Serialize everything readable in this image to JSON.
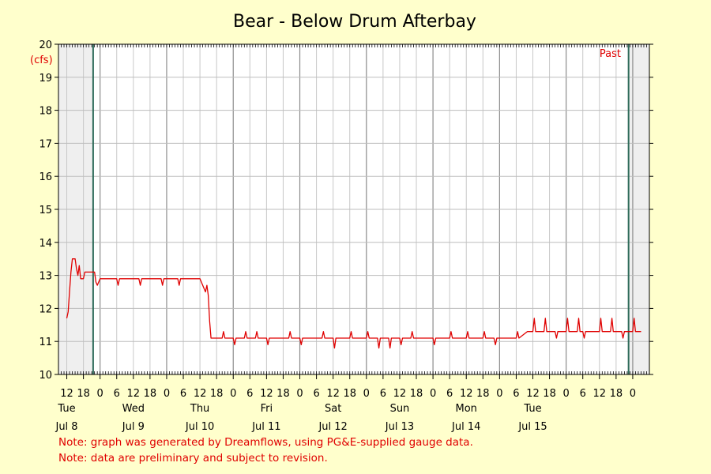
{
  "chart_data": {
    "type": "line",
    "title": "Bear - Below Drum Afterbay",
    "ylabel": "(cfs)",
    "ylim": [
      10,
      20
    ],
    "yticks": [
      "10",
      "11",
      "12",
      "13",
      "14",
      "15",
      "16",
      "17",
      "18",
      "19",
      "20"
    ],
    "grid": true,
    "x_range_hours": [
      -12,
      180
    ],
    "x_hour_ticks": [
      "12",
      "18",
      "0",
      "6",
      "12",
      "18",
      "0",
      "6",
      "12",
      "18",
      "0",
      "6",
      "12",
      "18",
      "0",
      "6",
      "12",
      "18",
      "0",
      "6",
      "12",
      "18",
      "0",
      "6",
      "12",
      "18",
      "0",
      "6",
      "12",
      "18",
      "0",
      "6",
      "12",
      "18",
      "0"
    ],
    "day_labels": [
      {
        "day": "Tue",
        "date": "Jul 8"
      },
      {
        "day": "Wed",
        "date": "Jul 9"
      },
      {
        "day": "Thu",
        "date": "Jul 10"
      },
      {
        "day": "Fri",
        "date": "Jul 11"
      },
      {
        "day": "Sat",
        "date": "Jul 12"
      },
      {
        "day": "Sun",
        "date": "Jul 13"
      },
      {
        "day": "Mon",
        "date": "Jul 14"
      },
      {
        "day": "Tue",
        "date": "Jul 15"
      }
    ],
    "marker_label": "Past",
    "series": [
      {
        "color": "#e00000",
        "points": [
          [
            -12,
            11.7
          ],
          [
            -11.5,
            11.9
          ],
          [
            -11,
            12.5
          ],
          [
            -10.5,
            13.1
          ],
          [
            -10,
            13.5
          ],
          [
            -9,
            13.5
          ],
          [
            -8.5,
            13.2
          ],
          [
            -8,
            13.0
          ],
          [
            -7.5,
            13.3
          ],
          [
            -7,
            12.9
          ],
          [
            -6,
            12.9
          ],
          [
            -5.5,
            13.1
          ],
          [
            -2,
            13.1
          ],
          [
            -1.5,
            12.8
          ],
          [
            -1,
            12.7
          ],
          [
            0,
            12.9
          ],
          [
            6,
            12.9
          ],
          [
            6.5,
            12.7
          ],
          [
            7,
            12.9
          ],
          [
            14,
            12.9
          ],
          [
            14.5,
            12.7
          ],
          [
            15,
            12.9
          ],
          [
            22,
            12.9
          ],
          [
            22.5,
            12.7
          ],
          [
            23,
            12.9
          ],
          [
            26,
            12.9
          ],
          [
            28,
            12.9
          ],
          [
            28.5,
            12.7
          ],
          [
            29,
            12.9
          ],
          [
            36,
            12.9
          ],
          [
            37,
            12.7
          ],
          [
            38,
            12.5
          ],
          [
            38.5,
            12.7
          ],
          [
            39,
            12.4
          ],
          [
            39.5,
            11.6
          ],
          [
            40,
            11.1
          ],
          [
            44,
            11.1
          ],
          [
            44.5,
            11.3
          ],
          [
            45,
            11.1
          ],
          [
            48,
            11.1
          ],
          [
            48.5,
            10.9
          ],
          [
            49,
            11.1
          ],
          [
            52,
            11.1
          ],
          [
            52.5,
            11.3
          ],
          [
            53,
            11.1
          ],
          [
            56,
            11.1
          ],
          [
            56.5,
            11.3
          ],
          [
            57,
            11.1
          ],
          [
            60,
            11.1
          ],
          [
            60.5,
            10.9
          ],
          [
            61,
            11.1
          ],
          [
            68,
            11.1
          ],
          [
            68.5,
            11.3
          ],
          [
            69,
            11.1
          ],
          [
            72,
            11.1
          ],
          [
            72.5,
            10.9
          ],
          [
            73,
            11.1
          ],
          [
            80,
            11.1
          ],
          [
            80.5,
            11.3
          ],
          [
            81,
            11.1
          ],
          [
            84,
            11.1
          ],
          [
            84.5,
            10.8
          ],
          [
            85,
            11.1
          ],
          [
            90,
            11.1
          ],
          [
            90.5,
            11.3
          ],
          [
            91,
            11.1
          ],
          [
            96,
            11.1
          ],
          [
            96.5,
            11.3
          ],
          [
            97,
            11.1
          ],
          [
            100,
            11.1
          ],
          [
            100.5,
            10.8
          ],
          [
            101,
            11.1
          ],
          [
            104,
            11.1
          ],
          [
            104.5,
            10.8
          ],
          [
            105,
            11.1
          ],
          [
            108,
            11.1
          ],
          [
            108.5,
            10.9
          ],
          [
            109,
            11.1
          ],
          [
            112,
            11.1
          ],
          [
            112.5,
            11.3
          ],
          [
            113,
            11.1
          ],
          [
            120,
            11.1
          ],
          [
            120.5,
            10.9
          ],
          [
            121,
            11.1
          ],
          [
            126,
            11.1
          ],
          [
            126.5,
            11.3
          ],
          [
            127,
            11.1
          ],
          [
            132,
            11.1
          ],
          [
            132.5,
            11.3
          ],
          [
            133,
            11.1
          ],
          [
            138,
            11.1
          ],
          [
            138.5,
            11.3
          ],
          [
            139,
            11.1
          ],
          [
            142,
            11.1
          ],
          [
            142.5,
            10.9
          ],
          [
            143,
            11.1
          ],
          [
            150,
            11.1
          ],
          [
            150.5,
            11.3
          ],
          [
            151,
            11.1
          ],
          [
            154,
            11.3
          ],
          [
            156,
            11.3
          ],
          [
            156.5,
            11.7
          ],
          [
            157,
            11.3
          ],
          [
            160,
            11.3
          ],
          [
            160.5,
            11.7
          ],
          [
            161,
            11.3
          ],
          [
            164,
            11.3
          ],
          [
            164.5,
            11.1
          ],
          [
            165,
            11.3
          ],
          [
            168,
            11.3
          ],
          [
            168.5,
            11.7
          ],
          [
            169,
            11.3
          ],
          [
            172,
            11.3
          ],
          [
            172.5,
            11.7
          ],
          [
            173,
            11.3
          ],
          [
            174,
            11.3
          ],
          [
            174.5,
            11.1
          ],
          [
            175,
            11.3
          ],
          [
            180,
            11.3
          ],
          [
            180.5,
            11.7
          ],
          [
            181,
            11.3
          ],
          [
            184,
            11.3
          ],
          [
            184.5,
            11.7
          ],
          [
            185,
            11.3
          ],
          [
            188,
            11.3
          ],
          [
            188.5,
            11.1
          ],
          [
            189,
            11.3
          ],
          [
            192,
            11.3
          ],
          [
            192.5,
            11.7
          ],
          [
            193,
            11.3
          ],
          [
            195,
            11.3
          ]
        ]
      }
    ]
  },
  "notes": [
    "Note: graph was generated by Dreamflows, using PG&E-supplied gauge data.",
    "Note: data are preliminary and subject to revision."
  ]
}
